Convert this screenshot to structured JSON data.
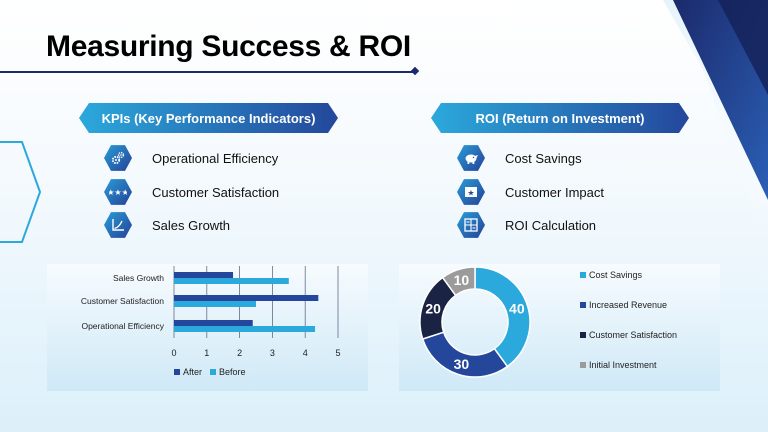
{
  "slide": {
    "title": "Measuring Success & ROI"
  },
  "kpi": {
    "heading": "KPIs (Key Performance Indicators)",
    "items": [
      {
        "label": "Operational Efficiency",
        "icon": "gears-icon"
      },
      {
        "label": "Customer Satisfaction",
        "icon": "stars-icon"
      },
      {
        "label": "Sales Growth",
        "icon": "growth-chart-icon"
      }
    ]
  },
  "roi": {
    "heading": "ROI (Return on Investment)",
    "items": [
      {
        "label": "Cost Savings",
        "icon": "piggy-bank-icon"
      },
      {
        "label": "Customer Impact",
        "icon": "star-badge-icon"
      },
      {
        "label": "ROI Calculation",
        "icon": "calculator-icon"
      }
    ]
  },
  "colors": {
    "navy": "#1b2a6b",
    "dark_blue": "#24479b",
    "light_blue": "#2ba9dc",
    "darkest": "#1b2344",
    "gray": "#9b9b9b"
  },
  "chart_data": [
    {
      "type": "bar",
      "orientation": "horizontal",
      "categories": [
        "Sales Growth",
        "Customer Satisfaction",
        "Operational Efficiency"
      ],
      "series": [
        {
          "name": "After",
          "values": [
            1.8,
            4.4,
            2.4
          ],
          "color": "#24479b"
        },
        {
          "name": "Before",
          "values": [
            3.5,
            2.5,
            4.3
          ],
          "color": "#2ba9dc"
        }
      ],
      "x_ticks": [
        "0",
        "1",
        "2",
        "3",
        "4",
        "5"
      ],
      "xlim": [
        0,
        5
      ],
      "grid": true,
      "legend_position": "bottom"
    },
    {
      "type": "pie",
      "donut": true,
      "labels": [
        "Cost Savings",
        "Increased Revenue",
        "Customer Satisfaction",
        "Initial Investment"
      ],
      "values": [
        40,
        30,
        20,
        10
      ],
      "value_labels": [
        "40",
        "30",
        "20",
        "10"
      ],
      "colors": [
        "#2ba9dc",
        "#24479b",
        "#1b2344",
        "#9b9b9b"
      ],
      "legend_position": "right"
    }
  ]
}
